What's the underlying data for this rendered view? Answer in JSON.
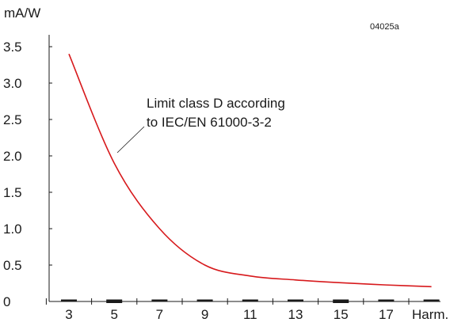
{
  "chart_data": {
    "type": "line",
    "code": "04025a",
    "ylabel": "mA/W",
    "xlabel": "Harm.",
    "ylim": [
      0,
      3.5
    ],
    "y_ticks": [
      "3.5",
      "3.0",
      "2.5",
      "2.0",
      "1.5",
      "1.0",
      "0.5",
      "0"
    ],
    "x_tick_labels": [
      "3",
      "5",
      "7",
      "9",
      "11",
      "13",
      "15",
      "17"
    ],
    "x": [
      3,
      5,
      7,
      9,
      11,
      13,
      15,
      17,
      19
    ],
    "values": [
      3.4,
      1.9,
      1.0,
      0.5,
      0.35,
      0.296,
      0.257,
      0.227,
      0.203
    ],
    "annotation": [
      "Limit class D according",
      "to IEC/EN 61000-3-2"
    ],
    "line_color": "#d7191c"
  }
}
